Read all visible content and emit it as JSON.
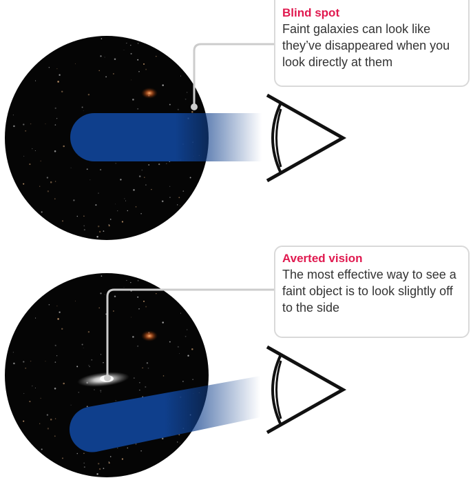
{
  "colors": {
    "title_accent": "#e0194f",
    "beam": "#0f3f8c",
    "sky": "#050505",
    "leader_line": "#cccccc",
    "eye_stroke": "#111111"
  },
  "icons": {
    "eye_top": "eye-icon",
    "eye_bottom": "eye-icon"
  },
  "panels": {
    "blind_spot": {
      "title": "Blind spot",
      "body": "Faint galaxies can look like they’ve disappeared when you look directly at them"
    },
    "averted_vision": {
      "title": "Averted vision",
      "body": "The most effective way to see a faint object is to look slightly off to the side"
    }
  }
}
